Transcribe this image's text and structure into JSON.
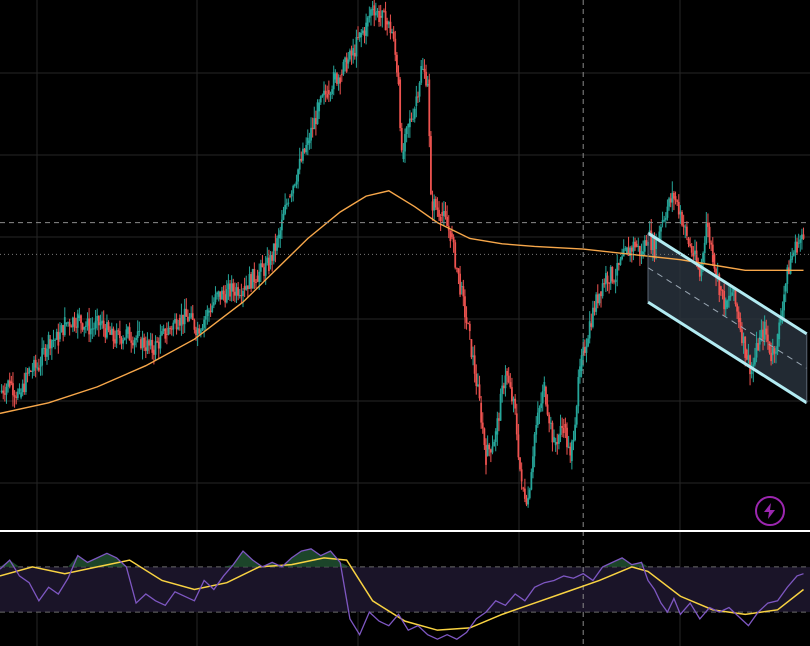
{
  "chart_data": {
    "type": "candlestick",
    "grid": true,
    "colors": {
      "background": "#000000",
      "grid": "#262626",
      "up": "#26a69a",
      "down": "#ef5350",
      "ma_line": "#f7a74a",
      "channel_stroke": "#b2ebf2",
      "channel_fill": "#2a3440",
      "rsi_line": "#7e57c2",
      "rsi_ma": "#f9d342",
      "rsi_band": "#1a1428",
      "separator": "#ffffff",
      "crosshair": "#8a8a8a"
    },
    "price_pane": {
      "ylim": [
        0,
        100
      ],
      "candle_segments": [
        [
          0,
          26
        ],
        [
          6,
          28
        ],
        [
          12,
          25
        ],
        [
          18,
          30
        ],
        [
          24,
          31
        ],
        [
          30,
          36
        ],
        [
          36,
          36
        ],
        [
          40,
          39
        ],
        [
          48,
          40
        ],
        [
          56,
          38
        ],
        [
          62,
          39
        ],
        [
          70,
          36
        ],
        [
          78,
          37
        ],
        [
          86,
          36
        ],
        [
          94,
          34
        ],
        [
          102,
          37
        ],
        [
          110,
          40
        ],
        [
          116,
          40
        ],
        [
          122,
          38
        ],
        [
          128,
          41
        ],
        [
          134,
          44
        ],
        [
          142,
          45
        ],
        [
          150,
          46
        ],
        [
          158,
          48
        ],
        [
          166,
          50
        ],
        [
          172,
          55
        ],
        [
          178,
          63
        ],
        [
          184,
          68
        ],
        [
          190,
          73
        ],
        [
          196,
          79
        ],
        [
          202,
          83
        ],
        [
          206,
          85
        ],
        [
          210,
          86
        ],
        [
          214,
          88
        ],
        [
          218,
          90
        ],
        [
          222,
          93
        ],
        [
          226,
          95
        ],
        [
          230,
          99
        ],
        [
          234,
          97
        ],
        [
          238,
          96
        ],
        [
          242,
          94
        ],
        [
          246,
          85
        ],
        [
          248,
          70
        ],
        [
          252,
          76
        ],
        [
          256,
          80
        ],
        [
          260,
          87
        ],
        [
          264,
          85
        ],
        [
          266,
          62
        ],
        [
          272,
          60
        ],
        [
          278,
          56
        ],
        [
          284,
          46
        ],
        [
          290,
          36
        ],
        [
          296,
          24
        ],
        [
          300,
          14
        ],
        [
          306,
          18
        ],
        [
          312,
          30
        ],
        [
          318,
          22
        ],
        [
          322,
          8
        ],
        [
          326,
          6
        ],
        [
          330,
          18
        ],
        [
          336,
          27
        ],
        [
          342,
          16
        ],
        [
          348,
          20
        ],
        [
          352,
          13
        ],
        [
          358,
          30
        ],
        [
          364,
          39
        ],
        [
          370,
          45
        ],
        [
          374,
          48
        ],
        [
          380,
          48
        ],
        [
          386,
          52
        ],
        [
          392,
          54
        ],
        [
          396,
          52
        ],
        [
          400,
          56
        ],
        [
          404,
          53
        ],
        [
          408,
          58
        ],
        [
          412,
          61
        ],
        [
          416,
          63
        ],
        [
          420,
          60
        ],
        [
          424,
          55
        ],
        [
          428,
          52
        ],
        [
          432,
          48
        ],
        [
          436,
          58
        ],
        [
          440,
          52
        ],
        [
          444,
          46
        ],
        [
          448,
          42
        ],
        [
          452,
          45
        ],
        [
          456,
          40
        ],
        [
          460,
          34
        ],
        [
          464,
          30
        ],
        [
          468,
          35
        ],
        [
          472,
          38
        ],
        [
          476,
          33
        ],
        [
          480,
          36
        ],
        [
          484,
          45
        ],
        [
          488,
          51
        ],
        [
          492,
          54
        ],
        [
          496,
          55
        ]
      ],
      "ma_points": [
        [
          0,
          22
        ],
        [
          30,
          24
        ],
        [
          60,
          27
        ],
        [
          90,
          31
        ],
        [
          120,
          36
        ],
        [
          150,
          43
        ],
        [
          170,
          49
        ],
        [
          190,
          55
        ],
        [
          210,
          60
        ],
        [
          226,
          63
        ],
        [
          240,
          64
        ],
        [
          256,
          61
        ],
        [
          270,
          58
        ],
        [
          290,
          55
        ],
        [
          310,
          54
        ],
        [
          330,
          53.5
        ],
        [
          360,
          53
        ],
        [
          390,
          52
        ],
        [
          420,
          51
        ],
        [
          440,
          50
        ],
        [
          460,
          49
        ],
        [
          480,
          49
        ],
        [
          496,
          49
        ]
      ],
      "channel": {
        "upper": [
          [
            400,
            56
          ],
          [
            498,
            37
          ]
        ],
        "lower": [
          [
            400,
            43
          ],
          [
            498,
            24
          ]
        ]
      },
      "crosshair_x": 360,
      "crosshair_y": 58,
      "dotted_level": 52
    },
    "rsi_pane": {
      "ylim": [
        0,
        100
      ],
      "overbought": 70,
      "oversold": 30,
      "rsi_points": [
        [
          0,
          68
        ],
        [
          6,
          76
        ],
        [
          12,
          62
        ],
        [
          18,
          56
        ],
        [
          24,
          40
        ],
        [
          30,
          52
        ],
        [
          36,
          46
        ],
        [
          42,
          60
        ],
        [
          48,
          80
        ],
        [
          54,
          74
        ],
        [
          60,
          78
        ],
        [
          66,
          82
        ],
        [
          72,
          78
        ],
        [
          78,
          70
        ],
        [
          84,
          38
        ],
        [
          90,
          46
        ],
        [
          96,
          40
        ],
        [
          102,
          36
        ],
        [
          108,
          48
        ],
        [
          114,
          44
        ],
        [
          120,
          40
        ],
        [
          126,
          58
        ],
        [
          132,
          50
        ],
        [
          138,
          62
        ],
        [
          144,
          72
        ],
        [
          150,
          84
        ],
        [
          156,
          76
        ],
        [
          162,
          70
        ],
        [
          168,
          74
        ],
        [
          174,
          70
        ],
        [
          180,
          78
        ],
        [
          186,
          84
        ],
        [
          192,
          86
        ],
        [
          198,
          80
        ],
        [
          204,
          84
        ],
        [
          210,
          74
        ],
        [
          216,
          24
        ],
        [
          222,
          10
        ],
        [
          228,
          30
        ],
        [
          234,
          22
        ],
        [
          240,
          18
        ],
        [
          246,
          28
        ],
        [
          252,
          14
        ],
        [
          258,
          18
        ],
        [
          264,
          10
        ],
        [
          270,
          6
        ],
        [
          276,
          10
        ],
        [
          282,
          6
        ],
        [
          288,
          12
        ],
        [
          294,
          24
        ],
        [
          300,
          30
        ],
        [
          306,
          40
        ],
        [
          312,
          36
        ],
        [
          318,
          46
        ],
        [
          324,
          40
        ],
        [
          330,
          52
        ],
        [
          336,
          56
        ],
        [
          342,
          58
        ],
        [
          348,
          62
        ],
        [
          354,
          60
        ],
        [
          360,
          64
        ],
        [
          366,
          58
        ],
        [
          372,
          70
        ],
        [
          378,
          74
        ],
        [
          384,
          78
        ],
        [
          390,
          72
        ],
        [
          396,
          74
        ],
        [
          400,
          58
        ],
        [
          404,
          50
        ],
        [
          408,
          38
        ],
        [
          412,
          30
        ],
        [
          416,
          42
        ],
        [
          420,
          28
        ],
        [
          426,
          38
        ],
        [
          432,
          24
        ],
        [
          438,
          34
        ],
        [
          444,
          30
        ],
        [
          450,
          34
        ],
        [
          456,
          26
        ],
        [
          462,
          18
        ],
        [
          468,
          30
        ],
        [
          474,
          38
        ],
        [
          480,
          40
        ],
        [
          486,
          52
        ],
        [
          492,
          62
        ],
        [
          496,
          64
        ]
      ],
      "ma_points": [
        [
          0,
          62
        ],
        [
          20,
          70
        ],
        [
          40,
          64
        ],
        [
          60,
          70
        ],
        [
          80,
          76
        ],
        [
          100,
          58
        ],
        [
          120,
          50
        ],
        [
          140,
          56
        ],
        [
          160,
          70
        ],
        [
          180,
          72
        ],
        [
          200,
          78
        ],
        [
          214,
          76
        ],
        [
          230,
          40
        ],
        [
          250,
          22
        ],
        [
          270,
          14
        ],
        [
          290,
          16
        ],
        [
          310,
          28
        ],
        [
          330,
          38
        ],
        [
          350,
          48
        ],
        [
          370,
          58
        ],
        [
          390,
          70
        ],
        [
          400,
          66
        ],
        [
          420,
          44
        ],
        [
          440,
          32
        ],
        [
          460,
          28
        ],
        [
          480,
          32
        ],
        [
          496,
          50
        ]
      ]
    }
  },
  "ui": {
    "flash_icon": "lightning-bolt-icon"
  }
}
